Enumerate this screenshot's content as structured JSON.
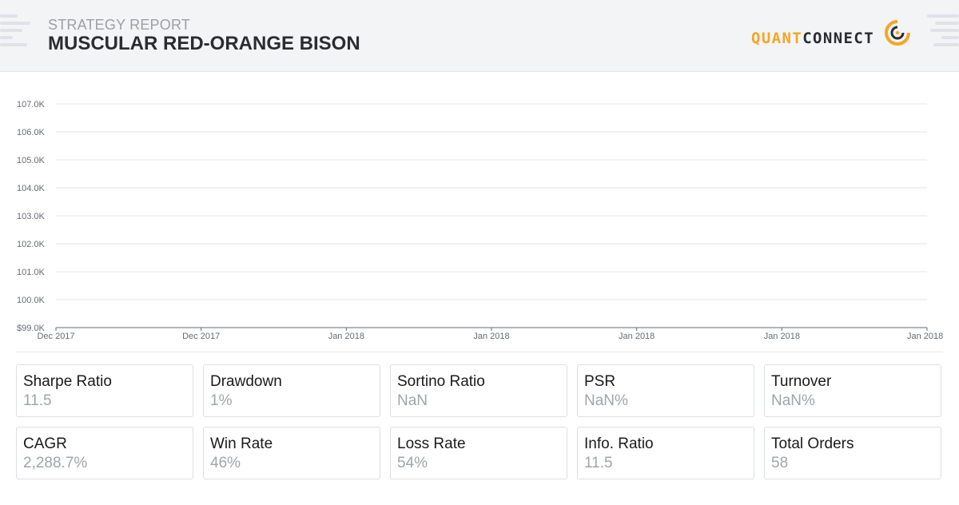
{
  "header": {
    "subtitle": "STRATEGY REPORT",
    "title": "MUSCULAR RED-ORANGE BISON",
    "logo": {
      "quant": "QUANT",
      "connect": "CONNECT",
      "accent_color": "#f5a623",
      "icon": "quantconnect-logo-icon"
    }
  },
  "chart_data": {
    "type": "line",
    "title": "",
    "xlabel": "",
    "ylabel": "",
    "y_ticks": [
      "$99.0K",
      "100.0K",
      "101.0K",
      "102.0K",
      "103.0K",
      "104.0K",
      "105.0K",
      "106.0K",
      "107.0K"
    ],
    "x_ticks": [
      "Dec 2017",
      "Dec 2017",
      "Jan 2018",
      "Jan 2018",
      "Jan 2018",
      "Jan 2018",
      "Jan 2018"
    ],
    "ylim": [
      99000,
      107000
    ],
    "grid": true,
    "series": []
  },
  "stats": [
    {
      "label": "Sharpe Ratio",
      "value": "11.5"
    },
    {
      "label": "Drawdown",
      "value": "1%"
    },
    {
      "label": "Sortino Ratio",
      "value": "NaN"
    },
    {
      "label": "PSR",
      "value": "NaN%"
    },
    {
      "label": "Turnover",
      "value": "NaN%"
    },
    {
      "label": "CAGR",
      "value": "2,288.7%"
    },
    {
      "label": "Win Rate",
      "value": "46%"
    },
    {
      "label": "Loss Rate",
      "value": "54%"
    },
    {
      "label": "Info. Ratio",
      "value": "11.5"
    },
    {
      "label": "Total Orders",
      "value": "58"
    }
  ]
}
